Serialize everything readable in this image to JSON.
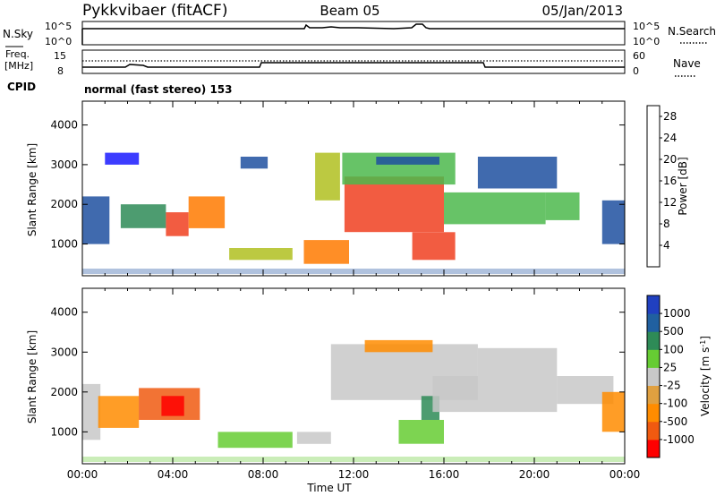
{
  "header": {
    "station": "Pykkvibaer (fitACF)",
    "beam": "Beam 05",
    "date": "05/Jan/2013"
  },
  "labels": {
    "nsky": "N.Sky",
    "nsearch": "N.Search",
    "freq_line1": "Freq.",
    "freq_line2": "[MHz]",
    "nave": "Nave",
    "cpid": "CPID",
    "cpid_value": "normal (fast stereo) 153",
    "sky_tick_top": "10^5",
    "sky_tick_bottom": "10^0",
    "freq_tick_top": "15",
    "freq_tick_bottom": "8",
    "nave_tick_top": "60",
    "nave_tick_bottom": "0"
  },
  "colors": {
    "power_scale": [
      "#1a1aff",
      "#1e50a0",
      "#2e8b57",
      "#4cb84c",
      "#b0c020",
      "#f0a800",
      "#ff7a00",
      "#f04020",
      "#ff0000"
    ],
    "velocity_scale": [
      "#ff0000",
      "#f05a10",
      "#ff8c00",
      "#e0a040",
      "#c8c8c8",
      "#66cc33",
      "#2e8b57",
      "#2060a0",
      "#2040c0"
    ],
    "velocity_gray": "#c8c8c8"
  },
  "chart_data": [
    {
      "type": "heatmap",
      "name": "power",
      "xlabel": "",
      "ylabel": "Slant Range [km]",
      "x_ticks": [
        "",
        "",
        "",
        "",
        "",
        "",
        ""
      ],
      "y_ticks": [
        "1000",
        "2000",
        "3000",
        "4000"
      ],
      "y_tick_values": [
        1000,
        2000,
        3000,
        4000
      ],
      "ylim": [
        200,
        4600
      ],
      "xlim_hours": [
        0,
        24
      ],
      "colorbar": {
        "label": "Power [dB]",
        "ticks": [
          "4",
          "8",
          "12",
          "16",
          "20",
          "24",
          "28"
        ],
        "range": [
          0,
          30
        ]
      },
      "regions": [
        {
          "t0": 0.0,
          "t1": 1.2,
          "r0": 1000,
          "r1": 2200,
          "level": 5
        },
        {
          "t0": 1.0,
          "t1": 2.5,
          "r0": 3000,
          "r1": 3300,
          "level": 2
        },
        {
          "t0": 1.7,
          "t1": 3.7,
          "r0": 1400,
          "r1": 2000,
          "level": 8
        },
        {
          "t0": 3.7,
          "t1": 4.7,
          "r0": 1200,
          "r1": 1800,
          "level": 26
        },
        {
          "t0": 4.7,
          "t1": 6.3,
          "r0": 1400,
          "r1": 2200,
          "level": 20
        },
        {
          "t0": 6.5,
          "t1": 9.3,
          "r0": 600,
          "r1": 900,
          "level": 14
        },
        {
          "t0": 7.0,
          "t1": 8.2,
          "r0": 2900,
          "r1": 3200,
          "level": 6
        },
        {
          "t0": 9.8,
          "t1": 11.8,
          "r0": 500,
          "r1": 1100,
          "level": 22
        },
        {
          "t0": 10.3,
          "t1": 11.4,
          "r0": 2100,
          "r1": 3300,
          "level": 14
        },
        {
          "t0": 11.6,
          "t1": 16.0,
          "r0": 1300,
          "r1": 2700,
          "level": 26
        },
        {
          "t0": 11.5,
          "t1": 16.5,
          "r0": 2500,
          "r1": 3300,
          "level": 12
        },
        {
          "t0": 13.0,
          "t1": 15.8,
          "r0": 3000,
          "r1": 3200,
          "level": 6
        },
        {
          "t0": 14.6,
          "t1": 16.5,
          "r0": 600,
          "r1": 1300,
          "level": 24
        },
        {
          "t0": 16.0,
          "t1": 20.5,
          "r0": 1500,
          "r1": 2300,
          "level": 12
        },
        {
          "t0": 17.5,
          "t1": 21.0,
          "r0": 2400,
          "r1": 3200,
          "level": 4
        },
        {
          "t0": 20.5,
          "t1": 22.0,
          "r0": 1600,
          "r1": 2300,
          "level": 10
        },
        {
          "t0": 23.0,
          "t1": 24.0,
          "r0": 1000,
          "r1": 2100,
          "level": 6
        }
      ]
    },
    {
      "type": "heatmap",
      "name": "velocity",
      "xlabel": "Time UT",
      "ylabel": "Slant Range [km]",
      "x_ticks": [
        "00:00",
        "04:00",
        "08:00",
        "12:00",
        "16:00",
        "20:00",
        "00:00"
      ],
      "y_ticks": [
        "1000",
        "2000",
        "3000",
        "4000"
      ],
      "y_tick_values": [
        1000,
        2000,
        3000,
        4000
      ],
      "ylim": [
        200,
        4600
      ],
      "xlim_hours": [
        0,
        24
      ],
      "colorbar": {
        "label": "Velocity [m s^-1]",
        "ticks": [
          "1000",
          "500",
          "100",
          "25",
          "-25",
          "-100",
          "-500",
          "-1000"
        ]
      },
      "regions": [
        {
          "t0": 0.0,
          "t1": 0.8,
          "r0": 800,
          "r1": 2200,
          "color": "#c8c8c8"
        },
        {
          "t0": 0.7,
          "t1": 2.5,
          "r0": 1100,
          "r1": 1900,
          "color": "#ff8c00"
        },
        {
          "t0": 2.5,
          "t1": 5.2,
          "r0": 1300,
          "r1": 2100,
          "color": "#f05a10"
        },
        {
          "t0": 3.5,
          "t1": 4.5,
          "r0": 1400,
          "r1": 1900,
          "color": "#ff0000"
        },
        {
          "t0": 6.0,
          "t1": 9.3,
          "r0": 600,
          "r1": 1000,
          "color": "#66cc33"
        },
        {
          "t0": 9.5,
          "t1": 11.0,
          "r0": 700,
          "r1": 1000,
          "color": "#c8c8c8"
        },
        {
          "t0": 11.0,
          "t1": 17.5,
          "r0": 1800,
          "r1": 3200,
          "color": "#c8c8c8"
        },
        {
          "t0": 12.5,
          "t1": 15.5,
          "r0": 3000,
          "r1": 3300,
          "color": "#ff8c00"
        },
        {
          "t0": 14.0,
          "t1": 16.0,
          "r0": 700,
          "r1": 1300,
          "color": "#66cc33"
        },
        {
          "t0": 15.0,
          "t1": 15.8,
          "r0": 1300,
          "r1": 1900,
          "color": "#2e8b57"
        },
        {
          "t0": 15.5,
          "t1": 21.0,
          "r0": 1500,
          "r1": 2400,
          "color": "#c8c8c8"
        },
        {
          "t0": 17.5,
          "t1": 21.0,
          "r0": 2400,
          "r1": 3100,
          "color": "#c8c8c8"
        },
        {
          "t0": 21.0,
          "t1": 23.5,
          "r0": 1700,
          "r1": 2400,
          "color": "#c8c8c8"
        },
        {
          "t0": 23.0,
          "t1": 24.0,
          "r0": 1000,
          "r1": 2000,
          "color": "#ff8c00"
        }
      ]
    }
  ]
}
